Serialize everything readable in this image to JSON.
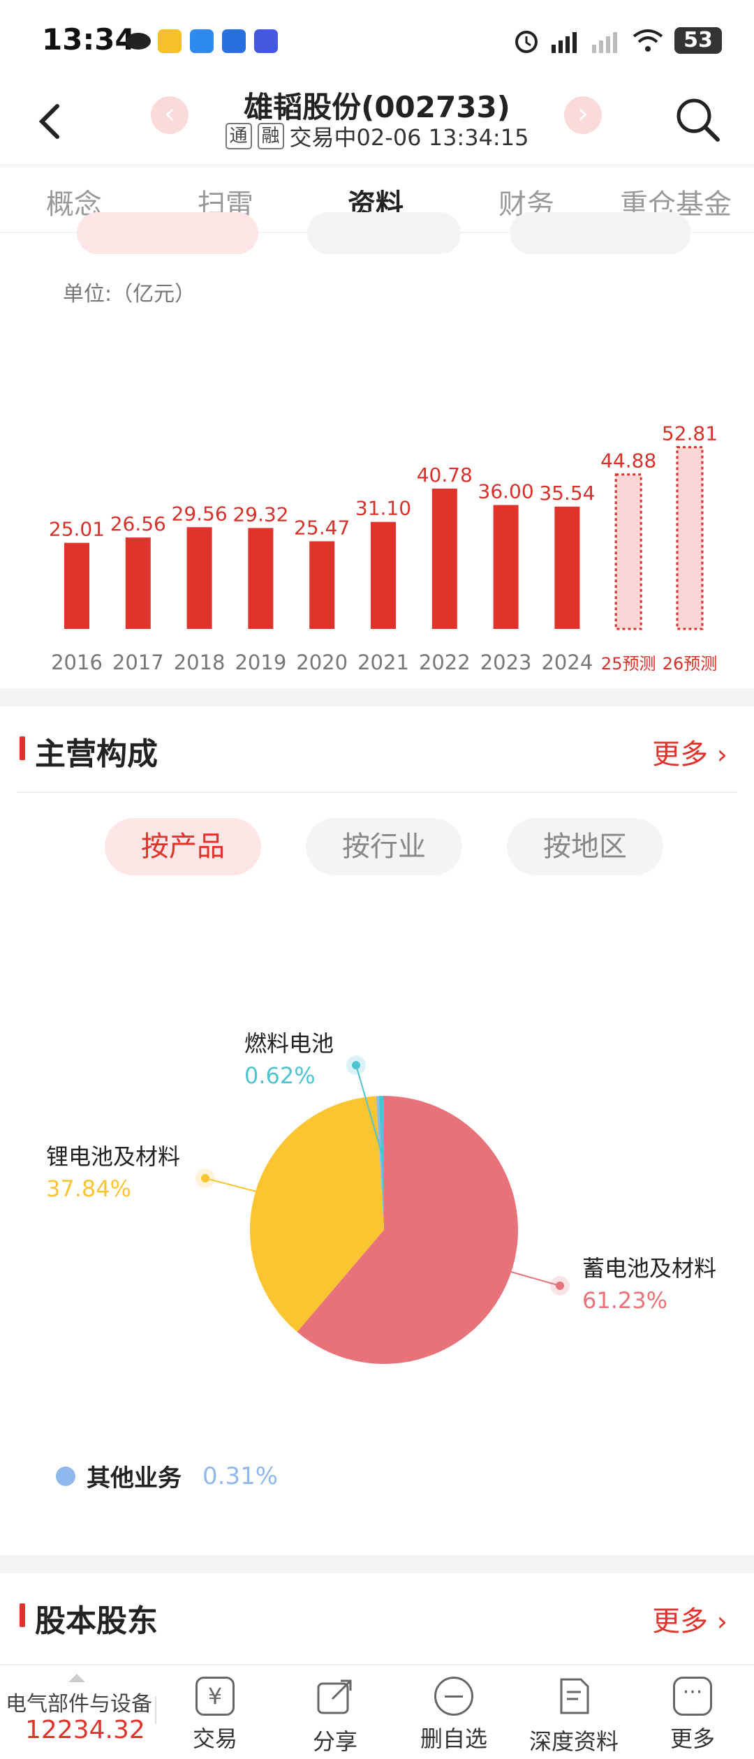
{
  "status_bar": {
    "time": "13:34",
    "battery": "53"
  },
  "header": {
    "title": "雄韬股份(002733)",
    "tag1": "通",
    "tag2": "融",
    "trade_status": "交易中02-06 13:34:15"
  },
  "tabs": [
    "概念",
    "扫雷",
    "资料",
    "财务",
    "重仓基金"
  ],
  "revenue_chart": {
    "unit_label": "单位:（亿元）"
  },
  "chart_data": {
    "type": "bar",
    "categories": [
      "2016",
      "2017",
      "2018",
      "2019",
      "2020",
      "2021",
      "2022",
      "2023",
      "2024",
      "25预测",
      "26预测"
    ],
    "values": [
      25.01,
      26.56,
      29.56,
      29.32,
      25.47,
      31.1,
      40.78,
      36.0,
      35.54,
      44.88,
      52.81
    ],
    "value_labels": [
      "25.01",
      "26.56",
      "29.56",
      "29.32",
      "25.47",
      "31.10",
      "40.78",
      "36.00",
      "35.54",
      "44.88",
      "52.81"
    ],
    "forecast": [
      false,
      false,
      false,
      false,
      false,
      false,
      false,
      false,
      false,
      true,
      true
    ],
    "ylabel": "单位:（亿元）",
    "colors": {
      "actual": "#e0332b",
      "forecast_fill": "#fbd7d7",
      "forecast_border": "#d9302a"
    }
  },
  "main_business": {
    "title": "主营构成",
    "more": "更多",
    "filters": [
      "按产品",
      "按行业",
      "按地区"
    ],
    "segments": [
      {
        "name": "蓄电池及材料",
        "pct": "61.23%",
        "value": 61.23,
        "color": "#e8727a"
      },
      {
        "name": "锂电池及材料",
        "pct": "37.84%",
        "value": 37.84,
        "color": "#fbc531"
      },
      {
        "name": "燃料电池",
        "pct": "0.62%",
        "value": 0.62,
        "color": "#4fc3d0"
      },
      {
        "name": "其他业务",
        "pct": "0.31%",
        "value": 0.31,
        "color": "#8fb8ec"
      }
    ]
  },
  "shareholders": {
    "title": "股本股东",
    "more": "更多"
  },
  "bottom_bar": {
    "index_name": "电气部件与设备",
    "index_value": "12234.32",
    "items": [
      "交易",
      "分享",
      "删自选",
      "深度资料",
      "更多"
    ]
  }
}
